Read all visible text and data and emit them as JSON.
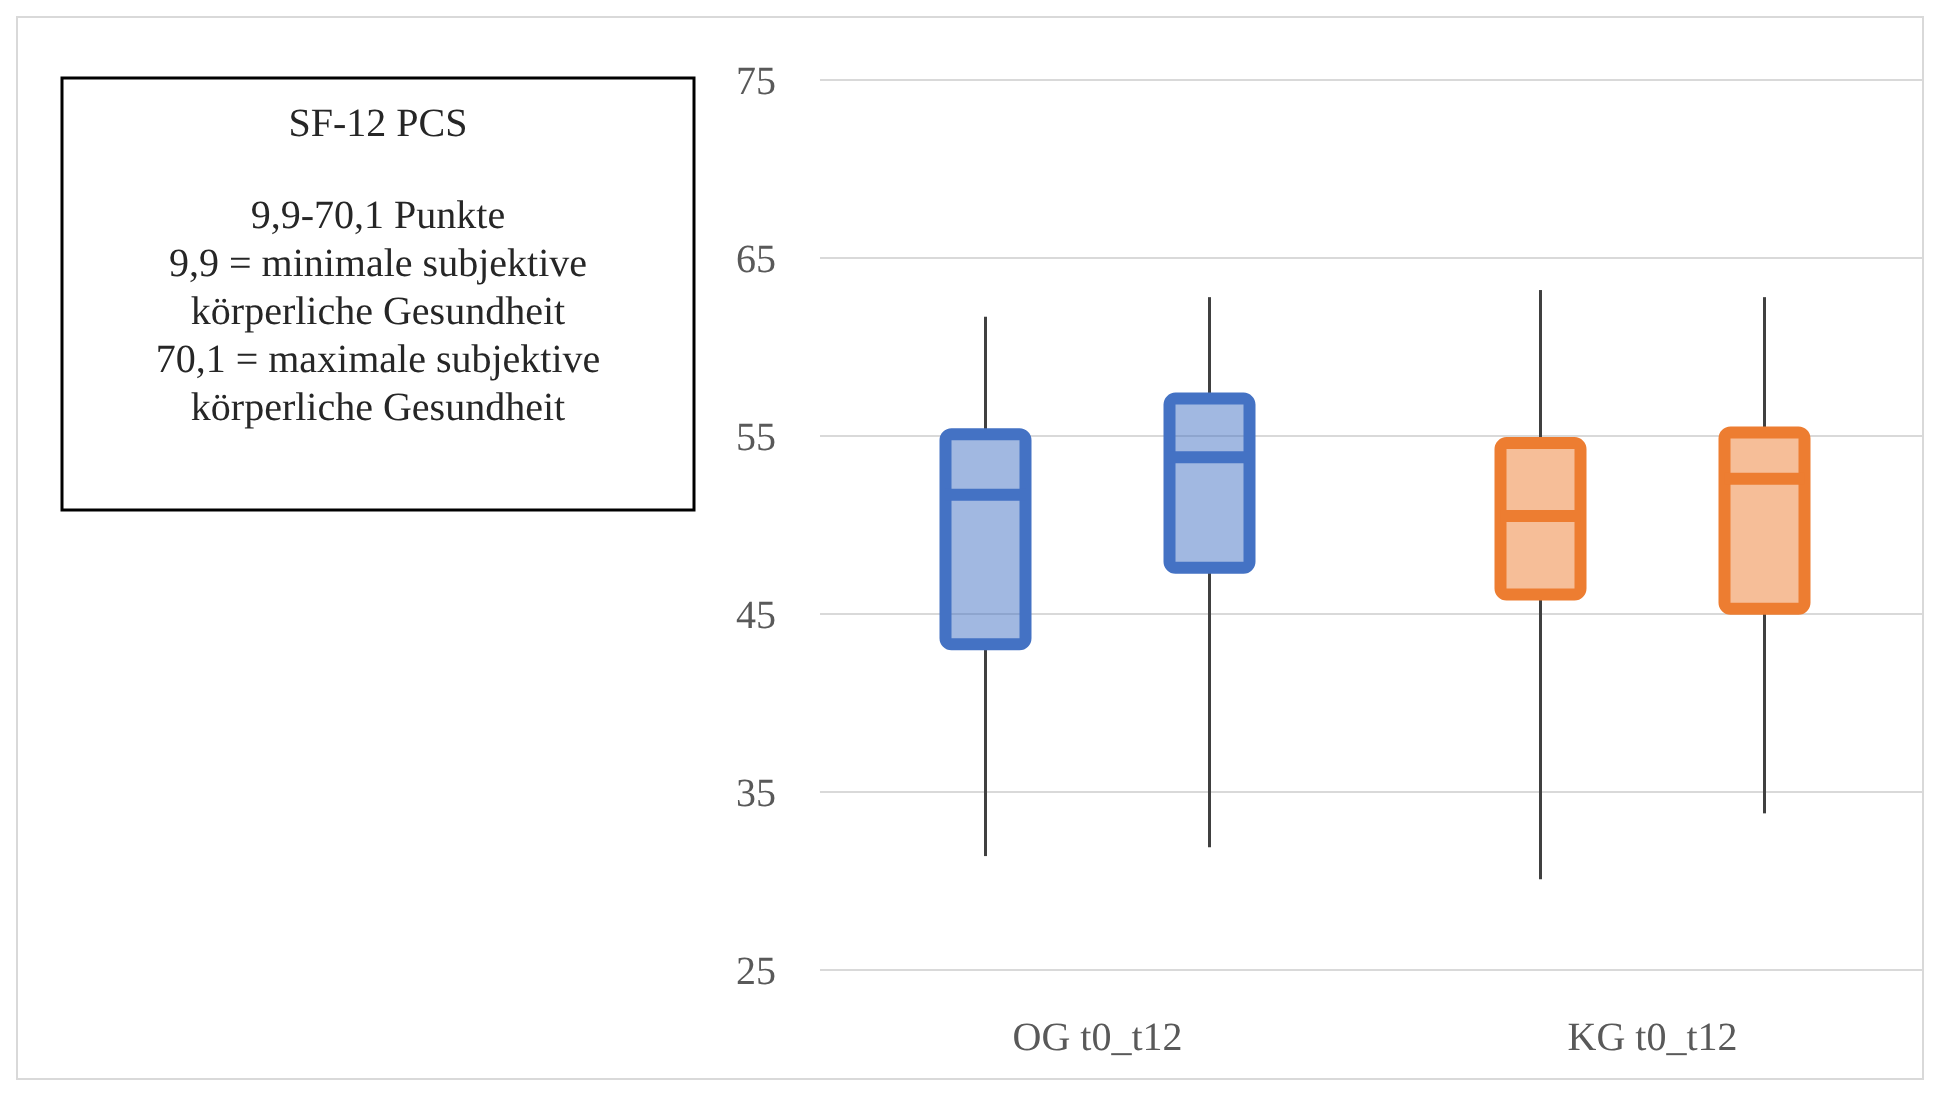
{
  "chart_data": {
    "type": "box",
    "title": "SF-12 PCS",
    "annotations": [
      "9,9-70,1 Punkte",
      "9,9 = minimale subjektive körperliche Gesundheit",
      "70,1 = maximale subjektive körperliche Gesundheit"
    ],
    "categories": [
      "OG t0_t12",
      "KG t0_t12"
    ],
    "ylim": [
      25,
      75
    ],
    "yticks": [
      25,
      35,
      45,
      55,
      65,
      75
    ],
    "grid": "y",
    "series": [
      {
        "colors": [
          "#4472c4",
          "#ed7d31"
        ],
        "boxes": [
          {
            "low": 31.4,
            "q1": 43.3,
            "median": 51.7,
            "q3": 55.1,
            "high": 61.7
          },
          {
            "low": 30.1,
            "q1": 46.1,
            "median": 50.5,
            "q3": 54.6,
            "high": 63.2
          }
        ]
      },
      {
        "colors": [
          "#4472c4",
          "#ed7d31"
        ],
        "boxes": [
          {
            "low": 31.9,
            "q1": 47.6,
            "median": 53.8,
            "q3": 57.1,
            "high": 62.8
          },
          {
            "low": 33.8,
            "q1": 45.3,
            "median": 52.6,
            "q3": 55.2,
            "high": 62.8
          }
        ]
      }
    ]
  }
}
